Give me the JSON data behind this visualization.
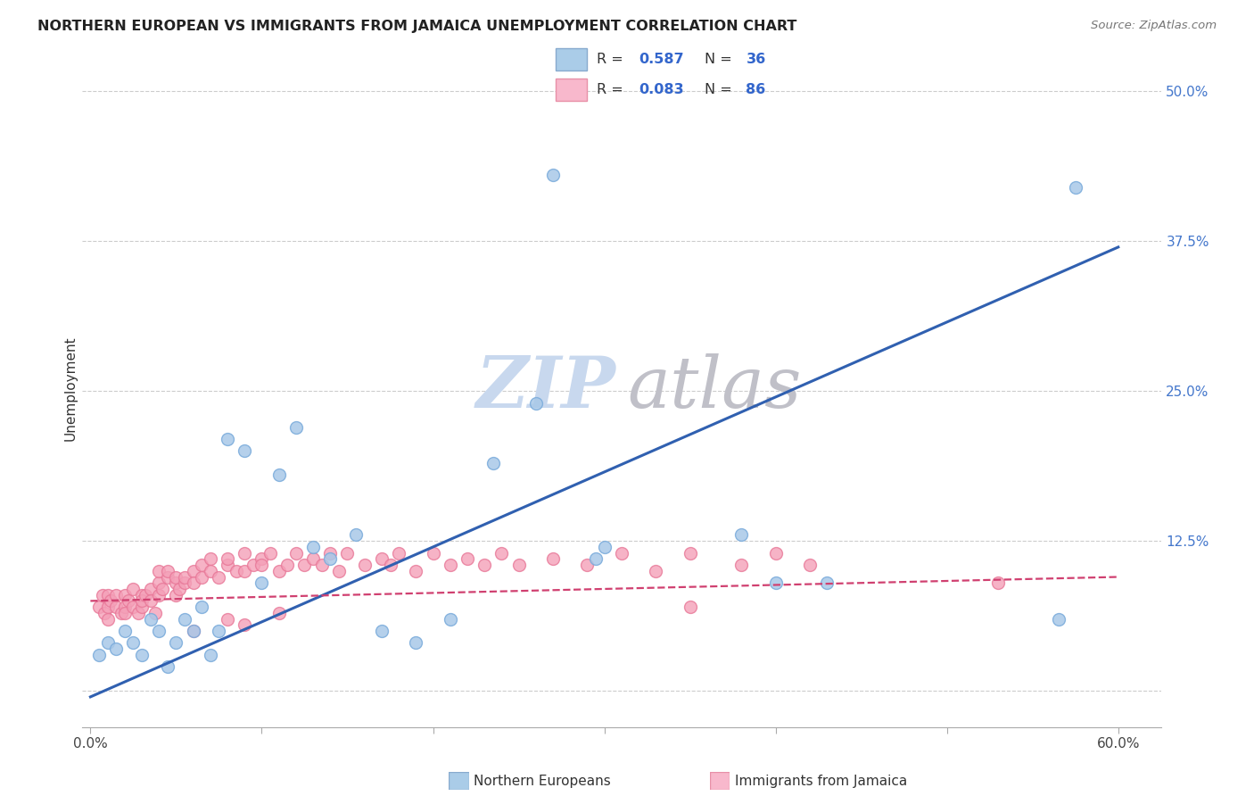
{
  "title": "NORTHERN EUROPEAN VS IMMIGRANTS FROM JAMAICA UNEMPLOYMENT CORRELATION CHART",
  "source": "Source: ZipAtlas.com",
  "ylabel": "Unemployment",
  "xlim": [
    -0.005,
    0.625
  ],
  "ylim": [
    -0.03,
    0.535
  ],
  "blue_R": 0.587,
  "blue_N": 36,
  "pink_R": 0.083,
  "pink_N": 86,
  "blue_dot_face": "#A8C8E8",
  "blue_dot_edge": "#7AABDB",
  "pink_dot_face": "#F4A0B8",
  "pink_dot_edge": "#E87898",
  "line_blue_color": "#3060B0",
  "line_pink_color": "#D04070",
  "legend_blue_face": "#AACCE8",
  "legend_blue_edge": "#88AACE",
  "legend_pink_face": "#F8B8CC",
  "legend_pink_edge": "#E890A8",
  "title_color": "#222222",
  "source_color": "#777777",
  "tick_color_right": "#4477CC",
  "ylabel_color": "#333333",
  "grid_color": "#CCCCCC",
  "watermark_zip_color": "#C8D8EE",
  "watermark_atlas_color": "#C0C0C8",
  "blue_x": [
    0.005,
    0.01,
    0.015,
    0.02,
    0.025,
    0.03,
    0.035,
    0.04,
    0.045,
    0.05,
    0.055,
    0.06,
    0.065,
    0.07,
    0.075,
    0.08,
    0.09,
    0.1,
    0.11,
    0.12,
    0.13,
    0.14,
    0.155,
    0.17,
    0.19,
    0.21,
    0.235,
    0.26,
    0.3,
    0.27,
    0.295,
    0.38,
    0.4,
    0.43,
    0.565,
    0.575
  ],
  "blue_y": [
    0.03,
    0.04,
    0.035,
    0.05,
    0.04,
    0.03,
    0.06,
    0.05,
    0.02,
    0.04,
    0.06,
    0.05,
    0.07,
    0.03,
    0.05,
    0.21,
    0.2,
    0.09,
    0.18,
    0.22,
    0.12,
    0.11,
    0.13,
    0.05,
    0.04,
    0.06,
    0.19,
    0.24,
    0.12,
    0.43,
    0.11,
    0.13,
    0.09,
    0.09,
    0.06,
    0.42
  ],
  "pink_x": [
    0.005,
    0.007,
    0.008,
    0.01,
    0.01,
    0.01,
    0.012,
    0.015,
    0.015,
    0.018,
    0.02,
    0.02,
    0.02,
    0.022,
    0.025,
    0.025,
    0.028,
    0.03,
    0.03,
    0.03,
    0.032,
    0.035,
    0.035,
    0.038,
    0.04,
    0.04,
    0.04,
    0.042,
    0.045,
    0.045,
    0.05,
    0.05,
    0.05,
    0.052,
    0.055,
    0.055,
    0.06,
    0.06,
    0.065,
    0.065,
    0.07,
    0.07,
    0.075,
    0.08,
    0.08,
    0.085,
    0.09,
    0.09,
    0.095,
    0.1,
    0.1,
    0.105,
    0.11,
    0.115,
    0.12,
    0.125,
    0.13,
    0.135,
    0.14,
    0.145,
    0.15,
    0.16,
    0.17,
    0.175,
    0.18,
    0.19,
    0.2,
    0.21,
    0.22,
    0.23,
    0.24,
    0.25,
    0.27,
    0.29,
    0.31,
    0.33,
    0.35,
    0.38,
    0.4,
    0.42,
    0.35,
    0.53,
    0.06,
    0.08,
    0.09,
    0.11
  ],
  "pink_y": [
    0.07,
    0.08,
    0.065,
    0.07,
    0.06,
    0.08,
    0.075,
    0.07,
    0.08,
    0.065,
    0.07,
    0.065,
    0.08,
    0.075,
    0.07,
    0.085,
    0.065,
    0.08,
    0.07,
    0.075,
    0.08,
    0.085,
    0.075,
    0.065,
    0.09,
    0.08,
    0.1,
    0.085,
    0.095,
    0.1,
    0.09,
    0.08,
    0.095,
    0.085,
    0.09,
    0.095,
    0.1,
    0.09,
    0.105,
    0.095,
    0.11,
    0.1,
    0.095,
    0.105,
    0.11,
    0.1,
    0.115,
    0.1,
    0.105,
    0.11,
    0.105,
    0.115,
    0.1,
    0.105,
    0.115,
    0.105,
    0.11,
    0.105,
    0.115,
    0.1,
    0.115,
    0.105,
    0.11,
    0.105,
    0.115,
    0.1,
    0.115,
    0.105,
    0.11,
    0.105,
    0.115,
    0.105,
    0.11,
    0.105,
    0.115,
    0.1,
    0.115,
    0.105,
    0.115,
    0.105,
    0.07,
    0.09,
    0.05,
    0.06,
    0.055,
    0.065
  ],
  "right_yticks": [
    0.0,
    0.125,
    0.25,
    0.375,
    0.5
  ],
  "right_ytick_labels": [
    "",
    "12.5%",
    "25.0%",
    "37.5%",
    "50.0%"
  ],
  "xticks": [
    0.0,
    0.1,
    0.2,
    0.3,
    0.4,
    0.5,
    0.6
  ],
  "xtick_labels": [
    "0.0%",
    "",
    "",
    "",
    "",
    "",
    "60.0%"
  ]
}
